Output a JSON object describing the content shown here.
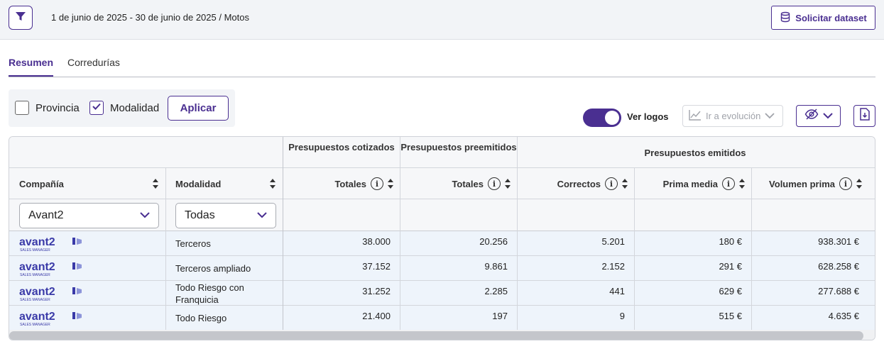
{
  "topbar": {
    "context": "1 de junio de 2025 - 30 de junio de 2025 / Motos",
    "dataset_button": "Solicitar dataset"
  },
  "tabs": [
    {
      "label": "Resumen",
      "active": true
    },
    {
      "label": "Corredurías",
      "active": false
    }
  ],
  "filters": {
    "provincia": {
      "label": "Provincia",
      "checked": false
    },
    "modalidad": {
      "label": "Modalidad",
      "checked": true
    },
    "apply": "Aplicar"
  },
  "controls": {
    "logos_toggle": {
      "label": "Ver logos",
      "on": true
    },
    "evolution": "Ir a evolución"
  },
  "table": {
    "groups": {
      "cotizados": "Presupuestos cotizados",
      "preemitidos": "Presupuestos preemitidos",
      "emitidos": "Presupuestos emitidos"
    },
    "columns": {
      "compania": "Compañía",
      "modalidad": "Modalidad",
      "totales_cot": "Totales",
      "totales_pre": "Totales",
      "correctos": "Correctos",
      "prima_media": "Prima media",
      "volumen_prima": "Volumen prima"
    },
    "filter_values": {
      "compania": "Avant2",
      "modalidad": "Todas"
    },
    "logo_text": "avant2",
    "logo_sub": "SALES MANAGER",
    "rows": [
      {
        "modalidad": "Terceros",
        "cotizados": "38.000",
        "preemitidos": "20.256",
        "correctos": "5.201",
        "prima_media": "180 €",
        "volumen": "938.301 €"
      },
      {
        "modalidad": "Terceros ampliado",
        "cotizados": "37.152",
        "preemitidos": "9.861",
        "correctos": "2.152",
        "prima_media": "291 €",
        "volumen": "628.258 €"
      },
      {
        "modalidad": "Todo Riesgo con Franquicia",
        "cotizados": "31.252",
        "preemitidos": "2.285",
        "correctos": "441",
        "prima_media": "629 €",
        "volumen": "277.688 €"
      },
      {
        "modalidad": "Todo Riesgo",
        "cotizados": "21.400",
        "preemitidos": "197",
        "correctos": "9",
        "prima_media": "515 €",
        "volumen": "4.635 €"
      }
    ]
  },
  "colors": {
    "accent": "#4a2f91",
    "logo": "#3a3aa8",
    "row_bg": "#eef4fb"
  }
}
